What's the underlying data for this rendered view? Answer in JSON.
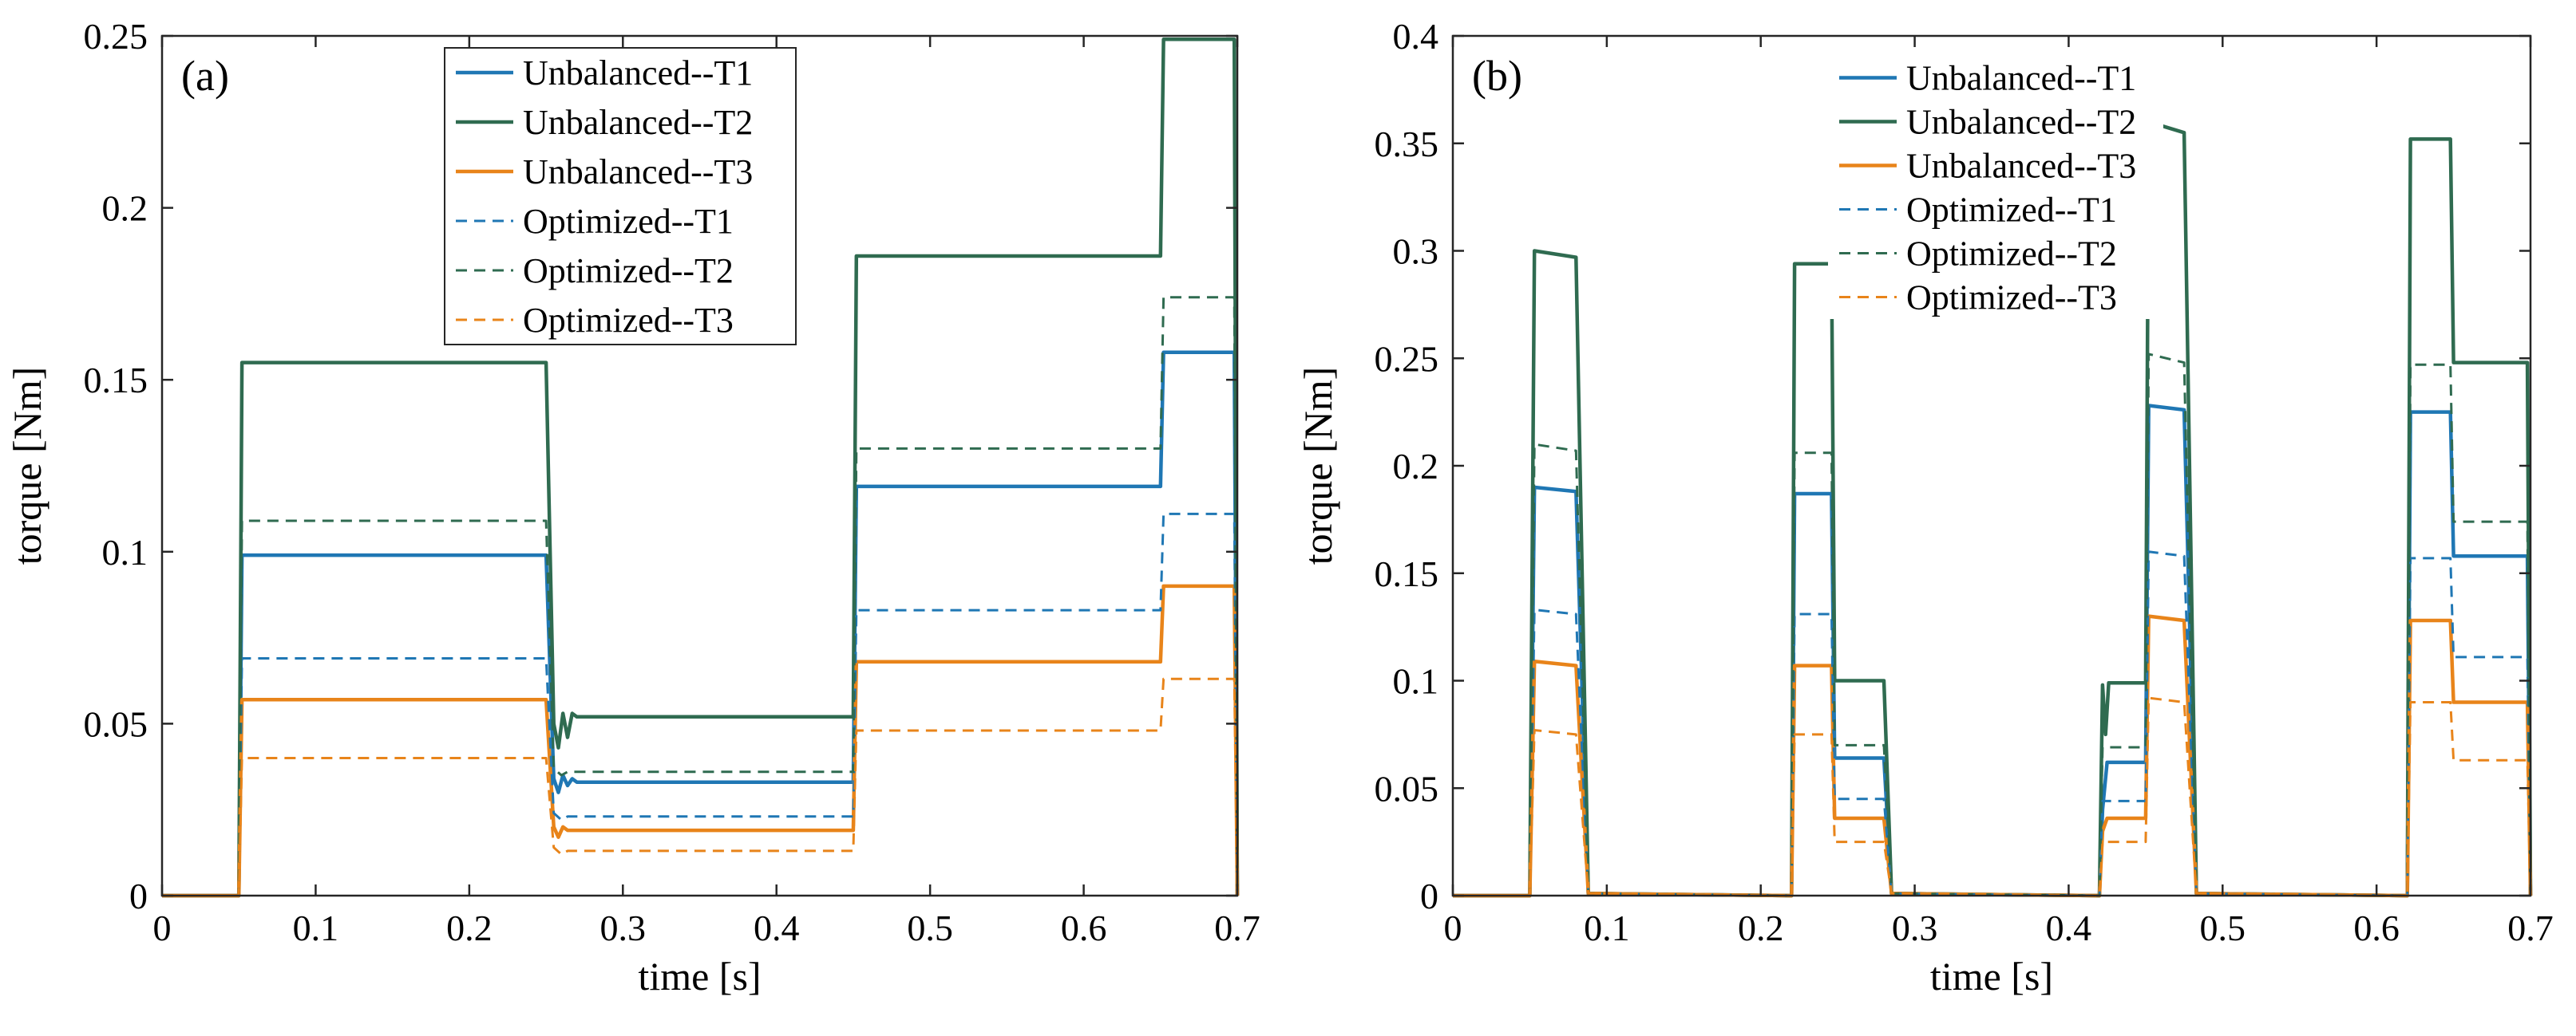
{
  "chart_data": [
    {
      "type": "line",
      "panel_label": "(a)",
      "xlabel": "time [s]",
      "ylabel": "torque [Nm]",
      "xlim": [
        0,
        0.7
      ],
      "ylim": [
        0,
        0.25
      ],
      "xticks": [
        0,
        0.1,
        0.2,
        0.3,
        0.4,
        0.5,
        0.6,
        0.7
      ],
      "yticks": [
        0,
        0.05,
        0.1,
        0.15,
        0.2,
        0.25
      ],
      "xtick_labels": [
        "0",
        "0.1",
        "0.2",
        "0.3",
        "0.4",
        "0.5",
        "0.6",
        "0.7"
      ],
      "ytick_labels": [
        "0",
        "0.05",
        "0.1",
        "0.15",
        "0.2",
        "0.25"
      ],
      "grid": false,
      "legend_position": "top-center",
      "series": [
        {
          "name": "Unbalanced--T1",
          "color": "#1f77b4",
          "dash": "solid",
          "points": [
            [
              0,
              0
            ],
            [
              0.05,
              0
            ],
            [
              0.052,
              0.099
            ],
            [
              0.25,
              0.099
            ],
            [
              0.255,
              0.034
            ],
            [
              0.258,
              0.03
            ],
            [
              0.261,
              0.035
            ],
            [
              0.264,
              0.032
            ],
            [
              0.267,
              0.034
            ],
            [
              0.27,
              0.033
            ],
            [
              0.45,
              0.033
            ],
            [
              0.452,
              0.119
            ],
            [
              0.65,
              0.119
            ],
            [
              0.652,
              0.158
            ],
            [
              0.698,
              0.158
            ],
            [
              0.7,
              0
            ]
          ]
        },
        {
          "name": "Unbalanced--T2",
          "color": "#2f6b50",
          "dash": "solid",
          "points": [
            [
              0,
              0
            ],
            [
              0.05,
              0
            ],
            [
              0.052,
              0.155
            ],
            [
              0.25,
              0.155
            ],
            [
              0.255,
              0.05
            ],
            [
              0.258,
              0.043
            ],
            [
              0.261,
              0.053
            ],
            [
              0.264,
              0.046
            ],
            [
              0.267,
              0.053
            ],
            [
              0.27,
              0.052
            ],
            [
              0.45,
              0.052
            ],
            [
              0.452,
              0.186
            ],
            [
              0.65,
              0.186
            ],
            [
              0.652,
              0.249
            ],
            [
              0.698,
              0.249
            ],
            [
              0.7,
              0
            ]
          ]
        },
        {
          "name": "Unbalanced--T3",
          "color": "#e8841a",
          "dash": "solid",
          "points": [
            [
              0,
              0
            ],
            [
              0.05,
              0
            ],
            [
              0.052,
              0.057
            ],
            [
              0.25,
              0.057
            ],
            [
              0.255,
              0.02
            ],
            [
              0.258,
              0.017
            ],
            [
              0.261,
              0.02
            ],
            [
              0.264,
              0.019
            ],
            [
              0.45,
              0.019
            ],
            [
              0.452,
              0.068
            ],
            [
              0.65,
              0.068
            ],
            [
              0.652,
              0.09
            ],
            [
              0.698,
              0.09
            ],
            [
              0.7,
              0
            ]
          ]
        },
        {
          "name": "Optimized--T1",
          "color": "#1f77b4",
          "dash": "dashed",
          "points": [
            [
              0,
              0
            ],
            [
              0.05,
              0
            ],
            [
              0.052,
              0.069
            ],
            [
              0.25,
              0.069
            ],
            [
              0.255,
              0.024
            ],
            [
              0.26,
              0.022
            ],
            [
              0.264,
              0.023
            ],
            [
              0.45,
              0.023
            ],
            [
              0.452,
              0.083
            ],
            [
              0.65,
              0.083
            ],
            [
              0.652,
              0.111
            ],
            [
              0.698,
              0.111
            ],
            [
              0.7,
              0
            ]
          ]
        },
        {
          "name": "Optimized--T2",
          "color": "#2f6b50",
          "dash": "dashed",
          "points": [
            [
              0,
              0
            ],
            [
              0.05,
              0
            ],
            [
              0.052,
              0.109
            ],
            [
              0.25,
              0.109
            ],
            [
              0.255,
              0.037
            ],
            [
              0.26,
              0.035
            ],
            [
              0.264,
              0.036
            ],
            [
              0.45,
              0.036
            ],
            [
              0.452,
              0.13
            ],
            [
              0.65,
              0.13
            ],
            [
              0.652,
              0.174
            ],
            [
              0.698,
              0.174
            ],
            [
              0.7,
              0
            ]
          ]
        },
        {
          "name": "Optimized--T3",
          "color": "#e8841a",
          "dash": "dashed",
          "points": [
            [
              0,
              0
            ],
            [
              0.05,
              0
            ],
            [
              0.052,
              0.04
            ],
            [
              0.25,
              0.04
            ],
            [
              0.255,
              0.014
            ],
            [
              0.26,
              0.012
            ],
            [
              0.264,
              0.013
            ],
            [
              0.45,
              0.013
            ],
            [
              0.452,
              0.048
            ],
            [
              0.65,
              0.048
            ],
            [
              0.652,
              0.063
            ],
            [
              0.698,
              0.063
            ],
            [
              0.7,
              0
            ]
          ]
        }
      ]
    },
    {
      "type": "line",
      "panel_label": "(b)",
      "xlabel": "time [s]",
      "ylabel": "torque [Nm]",
      "xlim": [
        0,
        0.7
      ],
      "ylim": [
        0,
        0.4
      ],
      "xticks": [
        0,
        0.1,
        0.2,
        0.3,
        0.4,
        0.5,
        0.6,
        0.7
      ],
      "yticks": [
        0,
        0.05,
        0.1,
        0.15,
        0.2,
        0.25,
        0.3,
        0.35,
        0.4
      ],
      "xtick_labels": [
        "0",
        "0.1",
        "0.2",
        "0.3",
        "0.4",
        "0.5",
        "0.6",
        "0.7"
      ],
      "ytick_labels": [
        "0",
        "0.05",
        "0.1",
        "0.15",
        "0.2",
        "0.25",
        "0.3",
        "0.35",
        "0.4"
      ],
      "grid": false,
      "legend_position": "top-center",
      "series": [
        {
          "name": "Unbalanced--T1",
          "color": "#1f77b4",
          "dash": "solid",
          "points": [
            [
              0,
              0
            ],
            [
              0.05,
              0
            ],
            [
              0.053,
              0.19
            ],
            [
              0.08,
              0.188
            ],
            [
              0.088,
              0.001
            ],
            [
              0.22,
              0
            ],
            [
              0.222,
              0.187
            ],
            [
              0.246,
              0.187
            ],
            [
              0.248,
              0.064
            ],
            [
              0.28,
              0.064
            ],
            [
              0.285,
              0.001
            ],
            [
              0.42,
              0
            ],
            [
              0.422,
              0.04
            ],
            [
              0.425,
              0.062
            ],
            [
              0.45,
              0.062
            ],
            [
              0.452,
              0.228
            ],
            [
              0.475,
              0.226
            ],
            [
              0.483,
              0.001
            ],
            [
              0.62,
              0
            ],
            [
              0.622,
              0.225
            ],
            [
              0.648,
              0.225
            ],
            [
              0.65,
              0.158
            ],
            [
              0.698,
              0.158
            ],
            [
              0.7,
              0
            ]
          ]
        },
        {
          "name": "Unbalanced--T2",
          "color": "#2f6b50",
          "dash": "solid",
          "points": [
            [
              0,
              0
            ],
            [
              0.05,
              0
            ],
            [
              0.053,
              0.3
            ],
            [
              0.08,
              0.297
            ],
            [
              0.088,
              0.001
            ],
            [
              0.22,
              0
            ],
            [
              0.222,
              0.294
            ],
            [
              0.246,
              0.294
            ],
            [
              0.248,
              0.1
            ],
            [
              0.28,
              0.1
            ],
            [
              0.285,
              0.001
            ],
            [
              0.42,
              0
            ],
            [
              0.422,
              0.098
            ],
            [
              0.424,
              0.075
            ],
            [
              0.426,
              0.099
            ],
            [
              0.45,
              0.099
            ],
            [
              0.452,
              0.36
            ],
            [
              0.475,
              0.355
            ],
            [
              0.483,
              0.001
            ],
            [
              0.62,
              0
            ],
            [
              0.622,
              0.352
            ],
            [
              0.648,
              0.352
            ],
            [
              0.65,
              0.248
            ],
            [
              0.698,
              0.248
            ],
            [
              0.7,
              0
            ]
          ]
        },
        {
          "name": "Unbalanced--T3",
          "color": "#e8841a",
          "dash": "solid",
          "points": [
            [
              0,
              0
            ],
            [
              0.05,
              0
            ],
            [
              0.053,
              0.109
            ],
            [
              0.08,
              0.107
            ],
            [
              0.088,
              0.001
            ],
            [
              0.22,
              0
            ],
            [
              0.222,
              0.107
            ],
            [
              0.246,
              0.107
            ],
            [
              0.248,
              0.036
            ],
            [
              0.28,
              0.036
            ],
            [
              0.285,
              0.001
            ],
            [
              0.42,
              0
            ],
            [
              0.422,
              0.03
            ],
            [
              0.425,
              0.036
            ],
            [
              0.45,
              0.036
            ],
            [
              0.452,
              0.13
            ],
            [
              0.475,
              0.128
            ],
            [
              0.483,
              0.001
            ],
            [
              0.62,
              0
            ],
            [
              0.622,
              0.128
            ],
            [
              0.648,
              0.128
            ],
            [
              0.65,
              0.09
            ],
            [
              0.698,
              0.09
            ],
            [
              0.7,
              0
            ]
          ]
        },
        {
          "name": "Optimized--T1",
          "color": "#1f77b4",
          "dash": "dashed",
          "points": [
            [
              0,
              0
            ],
            [
              0.05,
              0
            ],
            [
              0.053,
              0.133
            ],
            [
              0.08,
              0.131
            ],
            [
              0.088,
              0.001
            ],
            [
              0.22,
              0
            ],
            [
              0.222,
              0.131
            ],
            [
              0.246,
              0.131
            ],
            [
              0.248,
              0.045
            ],
            [
              0.28,
              0.045
            ],
            [
              0.285,
              0.001
            ],
            [
              0.42,
              0
            ],
            [
              0.422,
              0.044
            ],
            [
              0.45,
              0.044
            ],
            [
              0.452,
              0.16
            ],
            [
              0.475,
              0.158
            ],
            [
              0.483,
              0.001
            ],
            [
              0.62,
              0
            ],
            [
              0.622,
              0.157
            ],
            [
              0.648,
              0.157
            ],
            [
              0.65,
              0.111
            ],
            [
              0.698,
              0.111
            ],
            [
              0.7,
              0
            ]
          ]
        },
        {
          "name": "Optimized--T2",
          "color": "#2f6b50",
          "dash": "dashed",
          "points": [
            [
              0,
              0
            ],
            [
              0.05,
              0
            ],
            [
              0.053,
              0.21
            ],
            [
              0.08,
              0.207
            ],
            [
              0.088,
              0.001
            ],
            [
              0.22,
              0
            ],
            [
              0.222,
              0.206
            ],
            [
              0.246,
              0.206
            ],
            [
              0.248,
              0.07
            ],
            [
              0.28,
              0.07
            ],
            [
              0.285,
              0.001
            ],
            [
              0.42,
              0
            ],
            [
              0.422,
              0.069
            ],
            [
              0.45,
              0.069
            ],
            [
              0.452,
              0.252
            ],
            [
              0.475,
              0.248
            ],
            [
              0.483,
              0.001
            ],
            [
              0.62,
              0
            ],
            [
              0.622,
              0.247
            ],
            [
              0.648,
              0.247
            ],
            [
              0.65,
              0.174
            ],
            [
              0.698,
              0.174
            ],
            [
              0.7,
              0
            ]
          ]
        },
        {
          "name": "Optimized--T3",
          "color": "#e8841a",
          "dash": "dashed",
          "points": [
            [
              0,
              0
            ],
            [
              0.05,
              0
            ],
            [
              0.053,
              0.077
            ],
            [
              0.08,
              0.075
            ],
            [
              0.088,
              0.001
            ],
            [
              0.22,
              0
            ],
            [
              0.222,
              0.075
            ],
            [
              0.246,
              0.075
            ],
            [
              0.248,
              0.025
            ],
            [
              0.28,
              0.025
            ],
            [
              0.285,
              0.001
            ],
            [
              0.42,
              0
            ],
            [
              0.422,
              0.025
            ],
            [
              0.45,
              0.025
            ],
            [
              0.452,
              0.092
            ],
            [
              0.475,
              0.09
            ],
            [
              0.483,
              0.001
            ],
            [
              0.62,
              0
            ],
            [
              0.622,
              0.09
            ],
            [
              0.648,
              0.09
            ],
            [
              0.65,
              0.063
            ],
            [
              0.698,
              0.063
            ],
            [
              0.7,
              0
            ]
          ]
        }
      ]
    }
  ]
}
